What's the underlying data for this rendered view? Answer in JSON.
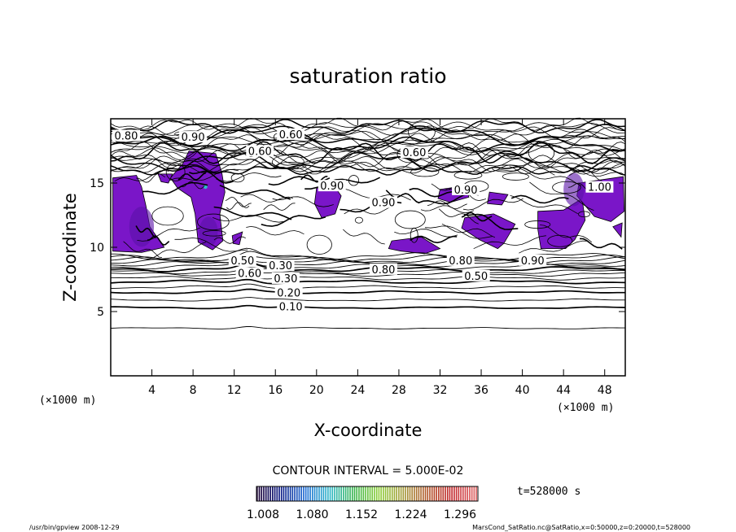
{
  "chart_data": {
    "type": "contour",
    "title": "saturation ratio",
    "xlabel": "X-coordinate",
    "ylabel": "Z-coordinate",
    "x_unit": "(×1000 m)",
    "y_unit": "(×1000 m)",
    "xlim": [
      0,
      50
    ],
    "ylim": [
      0,
      20
    ],
    "x_ticks": [
      4,
      8,
      12,
      16,
      20,
      24,
      28,
      32,
      36,
      40,
      44,
      48
    ],
    "y_ticks": [
      5,
      10,
      15
    ],
    "contour_interval_text": "CONTOUR INTERVAL = 5.000E-02",
    "time_text": "t=528000  s",
    "contour_labels": [
      {
        "text": "0.10",
        "x": 17.5,
        "y": 5.4
      },
      {
        "text": "0.20",
        "x": 17.3,
        "y": 6.5
      },
      {
        "text": "0.30",
        "x": 17.0,
        "y": 7.6
      },
      {
        "text": "0.30",
        "x": 16.5,
        "y": 8.6
      },
      {
        "text": "0.50",
        "x": 12.8,
        "y": 9.0
      },
      {
        "text": "0.60",
        "x": 13.5,
        "y": 8.0
      },
      {
        "text": "0.80",
        "x": 26.5,
        "y": 8.3
      },
      {
        "text": "0.80",
        "x": 34.0,
        "y": 9.0
      },
      {
        "text": "0.50",
        "x": 35.5,
        "y": 7.8
      },
      {
        "text": "0.90",
        "x": 41.0,
        "y": 9.0
      },
      {
        "text": "0.80",
        "x": 1.5,
        "y": 18.7
      },
      {
        "text": "0.90",
        "x": 8.0,
        "y": 18.6
      },
      {
        "text": "0.60",
        "x": 17.5,
        "y": 18.8
      },
      {
        "text": "0.60",
        "x": 14.5,
        "y": 17.5
      },
      {
        "text": "0.60",
        "x": 29.5,
        "y": 17.4
      },
      {
        "text": "0.90",
        "x": 21.5,
        "y": 14.8
      },
      {
        "text": "0.90",
        "x": 34.5,
        "y": 14.5
      },
      {
        "text": "1.00",
        "x": 47.5,
        "y": 14.7
      },
      {
        "text": "0.90",
        "x": 26.5,
        "y": 13.5
      }
    ],
    "colorbar": {
      "tick_labels": [
        "1.008",
        "1.080",
        "1.152",
        "1.224",
        "1.296"
      ],
      "colors": [
        "#1a0033",
        "#0b1c88",
        "#1f6fd6",
        "#2fb9c8",
        "#39b54a",
        "#8ecf3a",
        "#a59a3a",
        "#b2562a",
        "#c2272b",
        "#e06a6a"
      ]
    },
    "fill_color": "#7a16c8"
  },
  "footer": {
    "left": "/usr/bin/gpview   2008-12-29",
    "right": "MarsCond_SatRatio.nc@SatRatio,x=0:50000,z=0:20000,t=528000"
  }
}
